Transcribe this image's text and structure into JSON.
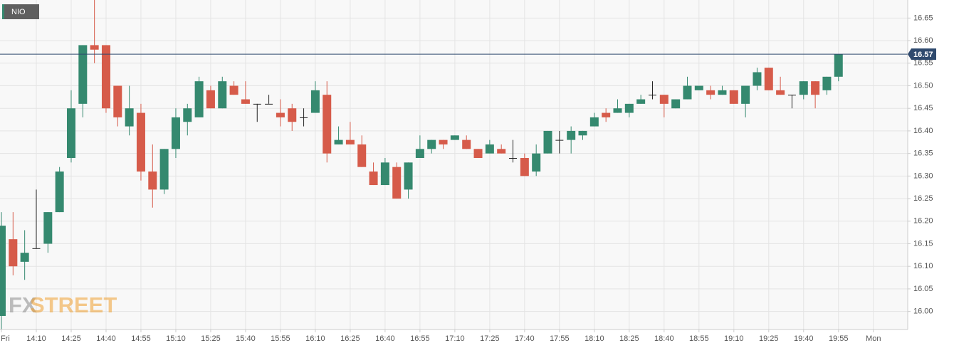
{
  "chart_data": {
    "type": "candlestick",
    "symbol": "NIO",
    "watermark": [
      "FX",
      "STREET"
    ],
    "categories": [
      "Fri",
      null,
      null,
      "14:10",
      null,
      null,
      "14:25",
      null,
      null,
      "14:40",
      null,
      null,
      "14:55",
      null,
      null,
      "15:10",
      null,
      null,
      "15:25",
      null,
      null,
      "15:40",
      null,
      null,
      "15:55",
      null,
      null,
      "16:10",
      null,
      null,
      "16:25",
      null,
      null,
      "16:40",
      null,
      null,
      "16:55",
      null,
      null,
      "17:10",
      null,
      null,
      "17:25",
      null,
      null,
      "17:40",
      null,
      null,
      "17:55",
      null,
      null,
      "18:10",
      null,
      null,
      "18:25",
      null,
      null,
      "18:40",
      null,
      null,
      "18:55",
      null,
      null,
      "19:10",
      null,
      null,
      "19:25",
      null,
      null,
      "19:40",
      null,
      null,
      "19:55",
      null,
      null,
      "Mon"
    ],
    "open": [
      15.99,
      16.16,
      16.11,
      16.14,
      16.15,
      16.22,
      16.34,
      16.46,
      16.59,
      16.59,
      16.5,
      16.41,
      16.44,
      16.31,
      16.27,
      16.36,
      16.42,
      16.43,
      16.49,
      16.45,
      16.5,
      16.47,
      16.46,
      16.46,
      16.44,
      16.45,
      16.43,
      16.44,
      16.48,
      16.37,
      16.38,
      16.37,
      16.31,
      16.28,
      16.32,
      16.27,
      16.34,
      16.36,
      16.38,
      16.38,
      16.38,
      16.36,
      16.35,
      16.36,
      16.34,
      16.34,
      16.31,
      16.35,
      16.38,
      16.38,
      16.39,
      16.41,
      16.44,
      16.44,
      16.44,
      16.46,
      16.48,
      16.48,
      16.45,
      16.47,
      16.49,
      16.49,
      16.48,
      16.49,
      16.46,
      16.5,
      16.54,
      16.49,
      16.48,
      16.48,
      16.51,
      16.49,
      16.52,
      null,
      null,
      null
    ],
    "high": [
      16.22,
      16.22,
      16.18,
      16.27,
      16.22,
      16.32,
      16.49,
      16.59,
      16.69,
      16.59,
      16.5,
      16.5,
      16.46,
      16.37,
      16.36,
      16.45,
      16.46,
      16.52,
      16.5,
      16.52,
      16.51,
      16.51,
      16.46,
      16.48,
      16.47,
      16.46,
      16.45,
      16.51,
      16.51,
      16.41,
      16.42,
      16.39,
      16.33,
      16.34,
      16.33,
      16.33,
      16.39,
      16.38,
      16.38,
      16.39,
      16.39,
      16.36,
      16.38,
      16.37,
      16.38,
      16.35,
      16.37,
      16.4,
      16.4,
      16.41,
      16.4,
      16.44,
      16.45,
      16.47,
      16.46,
      16.48,
      16.51,
      16.48,
      16.47,
      16.52,
      16.5,
      16.5,
      16.5,
      16.49,
      16.5,
      16.54,
      16.54,
      16.52,
      16.48,
      16.51,
      16.51,
      16.52,
      16.57,
      null,
      null,
      null
    ],
    "low": [
      15.96,
      16.08,
      16.07,
      16.14,
      16.13,
      16.22,
      16.33,
      16.43,
      16.55,
      16.44,
      16.41,
      16.39,
      16.29,
      16.23,
      16.26,
      16.34,
      16.39,
      16.43,
      16.45,
      16.45,
      16.48,
      16.46,
      16.42,
      16.46,
      16.41,
      16.4,
      16.41,
      16.44,
      16.33,
      16.37,
      16.37,
      16.32,
      16.28,
      16.28,
      16.25,
      16.25,
      16.34,
      16.35,
      16.36,
      16.38,
      16.36,
      16.34,
      16.35,
      16.35,
      16.33,
      16.3,
      16.3,
      16.35,
      16.35,
      16.35,
      16.38,
      16.41,
      16.42,
      16.44,
      16.43,
      16.46,
      16.47,
      16.43,
      16.45,
      16.47,
      16.49,
      16.47,
      16.48,
      16.46,
      16.43,
      16.49,
      16.49,
      16.48,
      16.45,
      16.47,
      16.45,
      16.48,
      16.51,
      null,
      null,
      null
    ],
    "close": [
      16.19,
      16.1,
      16.13,
      16.14,
      16.22,
      16.31,
      16.45,
      16.59,
      16.58,
      16.45,
      16.43,
      16.45,
      16.31,
      16.27,
      16.36,
      16.43,
      16.45,
      16.51,
      16.45,
      16.51,
      16.48,
      16.46,
      16.46,
      16.46,
      16.43,
      16.42,
      16.43,
      16.49,
      16.35,
      16.38,
      16.37,
      16.32,
      16.28,
      16.33,
      16.25,
      16.33,
      16.36,
      16.38,
      16.37,
      16.39,
      16.36,
      16.34,
      16.37,
      16.35,
      16.34,
      16.3,
      16.35,
      16.4,
      16.38,
      16.4,
      16.4,
      16.43,
      16.43,
      16.45,
      16.46,
      16.47,
      16.48,
      16.46,
      16.47,
      16.5,
      16.5,
      16.48,
      16.49,
      16.46,
      16.5,
      16.53,
      16.49,
      16.48,
      16.48,
      16.51,
      16.48,
      16.52,
      16.57,
      null,
      null,
      null
    ],
    "up_color": "#35896f",
    "down_color": "#d65b4a",
    "flat_color": "#222222",
    "last_price": 16.57,
    "last_price_color": "#2f4a6e",
    "ylim": [
      15.96,
      16.69
    ],
    "yticks": [
      {
        "value": 16.0,
        "label": "16.00"
      },
      16.05,
      {
        "value": 16.1,
        "label": "16.10"
      },
      16.15,
      {
        "value": 16.2,
        "label": "16.20"
      },
      16.25,
      {
        "value": 16.3,
        "label": "16.30"
      },
      16.35,
      {
        "value": 16.4,
        "label": "16.40"
      },
      16.45,
      {
        "value": 16.5,
        "label": "16.50"
      },
      16.55,
      {
        "value": 16.6,
        "label": "16.60"
      },
      16.65
    ],
    "grid": true
  }
}
